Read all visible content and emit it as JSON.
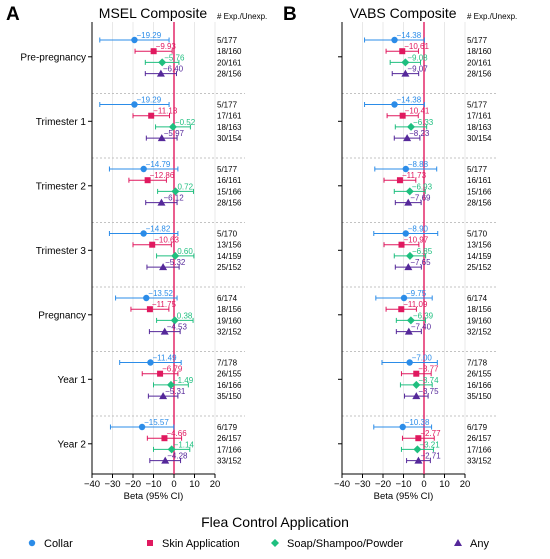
{
  "legend_title": "Flea Control Application",
  "chart_data": {
    "type": "forest",
    "xlabel": "Beta (95% CI)",
    "xlim": [
      -40,
      20
    ],
    "xticks": [
      -40,
      -30,
      -20,
      -10,
      0,
      10,
      20
    ],
    "reference_line": 0,
    "grid": "vertical",
    "legend_placement": "bottom",
    "counts_header": "# Exp./Unexp.",
    "series": [
      {
        "name": "Collar",
        "color": "#2b8ce8",
        "marker": "circle"
      },
      {
        "name": "Skin Application",
        "color": "#e0195f",
        "marker": "square"
      },
      {
        "name": "Soap/Shampoo/Powder",
        "color": "#1fbf7f",
        "marker": "diamond"
      },
      {
        "name": "Any",
        "color": "#55289a",
        "marker": "triangle"
      }
    ],
    "panels": [
      {
        "letter": "A",
        "title": "MSEL Composite",
        "groups": [
          {
            "label": "Pre-pregnancy",
            "rows": [
              {
                "est": -19.29,
                "lo": -36.2,
                "hi": -2.4,
                "label": "−19.29",
                "n": "5/177"
              },
              {
                "est": -9.93,
                "lo": -19.0,
                "hi": -0.9,
                "label": "−9.93",
                "n": "18/160"
              },
              {
                "est": -5.76,
                "lo": -14.0,
                "hi": 2.4,
                "label": "−5.76",
                "n": "20/161"
              },
              {
                "est": -6.4,
                "lo": -14.0,
                "hi": 1.2,
                "label": "−6.40",
                "n": "28/156"
              }
            ]
          },
          {
            "label": "Trimester 1",
            "rows": [
              {
                "est": -19.29,
                "lo": -36.2,
                "hi": -2.4,
                "label": "−19.29",
                "n": "5/177"
              },
              {
                "est": -11.13,
                "lo": -20.0,
                "hi": -2.2,
                "label": "−11.13",
                "n": "17/161"
              },
              {
                "est": -0.52,
                "lo": -9.0,
                "hi": 8.0,
                "label": "−0.52",
                "n": "18/163"
              },
              {
                "est": -5.97,
                "lo": -13.5,
                "hi": 1.5,
                "label": "−5.97",
                "n": "30/154"
              }
            ]
          },
          {
            "label": "Trimester 2",
            "rows": [
              {
                "est": -14.79,
                "lo": -31.5,
                "hi": 1.9,
                "label": "−14.79",
                "n": "5/177"
              },
              {
                "est": -12.86,
                "lo": -22.0,
                "hi": -3.7,
                "label": "−12.86",
                "n": "16/161"
              },
              {
                "est": 0.72,
                "lo": -8.0,
                "hi": 9.5,
                "label": "0.72",
                "n": "15/166"
              },
              {
                "est": -6.12,
                "lo": -13.8,
                "hi": 1.5,
                "label": "−6.12",
                "n": "28/156"
              }
            ]
          },
          {
            "label": "Trimester 3",
            "rows": [
              {
                "est": -14.82,
                "lo": -31.5,
                "hi": 1.9,
                "label": "−14.82",
                "n": "5/170"
              },
              {
                "est": -10.63,
                "lo": -20.0,
                "hi": -1.3,
                "label": "−10.63",
                "n": "13/156"
              },
              {
                "est": 0.6,
                "lo": -8.5,
                "hi": 9.7,
                "label": "0.60",
                "n": "14/159"
              },
              {
                "est": -5.32,
                "lo": -13.2,
                "hi": 2.5,
                "label": "−5.32",
                "n": "25/152"
              }
            ]
          },
          {
            "label": "Pregnancy",
            "rows": [
              {
                "est": -13.52,
                "lo": -28.5,
                "hi": 1.5,
                "label": "−13.52",
                "n": "6/174"
              },
              {
                "est": -11.75,
                "lo": -21.0,
                "hi": -2.5,
                "label": "−11.75",
                "n": "18/156"
              },
              {
                "est": 0.38,
                "lo": -8.5,
                "hi": 9.3,
                "label": "0.38",
                "n": "19/160"
              },
              {
                "est": -4.53,
                "lo": -12.0,
                "hi": 3.0,
                "label": "−4.53",
                "n": "32/152"
              }
            ]
          },
          {
            "label": "Year 1",
            "rows": [
              {
                "est": -11.49,
                "lo": -26.5,
                "hi": 3.5,
                "label": "−11.49",
                "n": "7/178"
              },
              {
                "est": -6.79,
                "lo": -15.5,
                "hi": 1.9,
                "label": "−6.79",
                "n": "26/155"
              },
              {
                "est": -1.49,
                "lo": -10.0,
                "hi": 7.0,
                "label": "−1.49",
                "n": "16/166"
              },
              {
                "est": -5.31,
                "lo": -12.5,
                "hi": 1.9,
                "label": "−5.31",
                "n": "35/150"
              }
            ]
          },
          {
            "label": "Year 2",
            "rows": [
              {
                "est": -15.57,
                "lo": -31.0,
                "hi": -0.1,
                "label": "−15.57",
                "n": "6/179"
              },
              {
                "est": -4.66,
                "lo": -13.0,
                "hi": 3.7,
                "label": "−4.66",
                "n": "26/157"
              },
              {
                "est": -1.14,
                "lo": -10.0,
                "hi": 7.7,
                "label": "−1.14",
                "n": "17/166"
              },
              {
                "est": -4.28,
                "lo": -11.8,
                "hi": 3.2,
                "label": "−4.28",
                "n": "33/152"
              }
            ]
          }
        ]
      },
      {
        "letter": "B",
        "title": "VABS Composite",
        "groups": [
          {
            "label": "Pre-pregnancy",
            "rows": [
              {
                "est": -14.38,
                "lo": -29.0,
                "hi": 0.2,
                "label": "−14.38",
                "n": "5/177"
              },
              {
                "est": -10.61,
                "lo": -18.5,
                "hi": -2.7,
                "label": "−10.61",
                "n": "18/160"
              },
              {
                "est": -9.08,
                "lo": -16.5,
                "hi": -1.7,
                "label": "−9.08",
                "n": "20/161"
              },
              {
                "est": -9.07,
                "lo": -15.5,
                "hi": -2.6,
                "label": "−9.07",
                "n": "28/156"
              }
            ]
          },
          {
            "label": "Trimester 1",
            "rows": [
              {
                "est": -14.38,
                "lo": -29.0,
                "hi": 0.2,
                "label": "−14.38",
                "n": "5/177"
              },
              {
                "est": -10.41,
                "lo": -18.0,
                "hi": -2.8,
                "label": "−10.41",
                "n": "17/161"
              },
              {
                "est": -6.33,
                "lo": -14.0,
                "hi": 1.3,
                "label": "−6.33",
                "n": "18/163"
              },
              {
                "est": -8.23,
                "lo": -14.5,
                "hi": -2.0,
                "label": "−8.23",
                "n": "30/154"
              }
            ]
          },
          {
            "label": "Trimester 2",
            "rows": [
              {
                "est": -8.88,
                "lo": -24.0,
                "hi": 6.2,
                "label": "−8.88",
                "n": "5/177"
              },
              {
                "est": -11.73,
                "lo": -19.5,
                "hi": -4.0,
                "label": "−11.73",
                "n": "16/161"
              },
              {
                "est": -6.93,
                "lo": -14.5,
                "hi": 0.6,
                "label": "−6.93",
                "n": "15/166"
              },
              {
                "est": -7.69,
                "lo": -14.0,
                "hi": -1.4,
                "label": "−7.69",
                "n": "28/156"
              }
            ]
          },
          {
            "label": "Trimester 3",
            "rows": [
              {
                "est": -8.9,
                "lo": -24.5,
                "hi": 6.7,
                "label": "−8.90",
                "n": "5/170"
              },
              {
                "est": -10.97,
                "lo": -19.5,
                "hi": -2.5,
                "label": "−10.97",
                "n": "13/156"
              },
              {
                "est": -6.85,
                "lo": -14.5,
                "hi": 0.8,
                "label": "−6.85",
                "n": "14/159"
              },
              {
                "est": -7.65,
                "lo": -14.0,
                "hi": -1.3,
                "label": "−7.65",
                "n": "25/152"
              }
            ]
          },
          {
            "label": "Pregnancy",
            "rows": [
              {
                "est": -9.75,
                "lo": -23.5,
                "hi": 4.0,
                "label": "−9.75",
                "n": "6/174"
              },
              {
                "est": -11.09,
                "lo": -18.5,
                "hi": -3.7,
                "label": "−11.09",
                "n": "18/156"
              },
              {
                "est": -6.39,
                "lo": -13.5,
                "hi": 0.7,
                "label": "−6.39",
                "n": "19/160"
              },
              {
                "est": -7.4,
                "lo": -13.5,
                "hi": -1.3,
                "label": "−7.40",
                "n": "32/152"
              }
            ]
          },
          {
            "label": "Year 1",
            "rows": [
              {
                "est": -7.0,
                "lo": -20.5,
                "hi": 6.5,
                "label": "−7.00",
                "n": "7/178"
              },
              {
                "est": -3.77,
                "lo": -11.0,
                "hi": 3.5,
                "label": "−3.77",
                "n": "26/155"
              },
              {
                "est": -3.74,
                "lo": -11.5,
                "hi": 4.0,
                "label": "−3.74",
                "n": "16/166"
              },
              {
                "est": -3.75,
                "lo": -9.5,
                "hi": 2.0,
                "label": "−3.75",
                "n": "35/150"
              }
            ]
          },
          {
            "label": "Year 2",
            "rows": [
              {
                "est": -10.38,
                "lo": -24.5,
                "hi": 3.7,
                "label": "−10.38",
                "n": "6/179"
              },
              {
                "est": -2.77,
                "lo": -10.5,
                "hi": 5.0,
                "label": "−2.77",
                "n": "26/157"
              },
              {
                "est": -3.21,
                "lo": -11.0,
                "hi": 4.6,
                "label": "−3.21",
                "n": "17/166"
              },
              {
                "est": -2.71,
                "lo": -8.5,
                "hi": 3.1,
                "label": "−2.71",
                "n": "33/152"
              }
            ]
          }
        ]
      }
    ]
  }
}
